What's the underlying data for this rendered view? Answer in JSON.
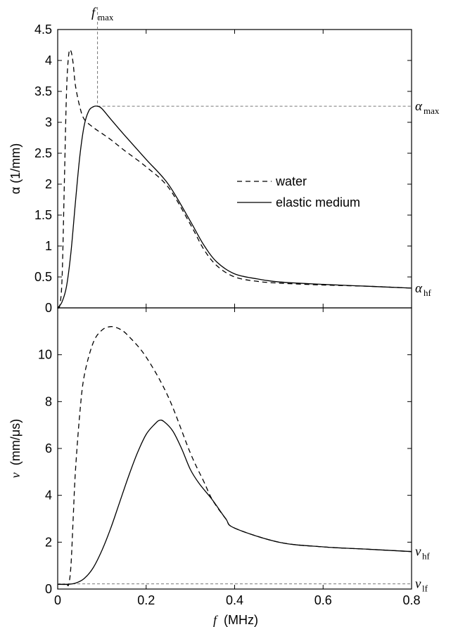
{
  "chart_data": [
    {
      "type": "line",
      "ylabel": "α (1/mm)",
      "xlim": [
        0,
        0.8
      ],
      "ylim": [
        0,
        4.5
      ],
      "yticks": [
        "0",
        "0.5",
        "1",
        "1.5",
        "2",
        "2.5",
        "3",
        "3.5",
        "4",
        "4.5"
      ],
      "ytick_values": [
        0,
        0.5,
        1,
        1.5,
        2,
        2.5,
        3,
        3.5,
        4,
        4.5
      ],
      "grid": false,
      "legend_position": "center-right",
      "annotations": {
        "fmax": {
          "label_main": "f",
          "label_sub": "max",
          "x": 0.09
        },
        "alpha_max": {
          "label_main": "α",
          "label_sub": "max",
          "y": 3.26
        },
        "alpha_hf": {
          "label_main": "α",
          "label_sub": "hf",
          "y": 0.32
        }
      },
      "series": [
        {
          "name": "water",
          "style": "dashed",
          "x": [
            0,
            0.005,
            0.01,
            0.015,
            0.02,
            0.025,
            0.03,
            0.035,
            0.04,
            0.05,
            0.06,
            0.08,
            0.1,
            0.12,
            0.15,
            0.2,
            0.25,
            0.3,
            0.33,
            0.36,
            0.4,
            0.45,
            0.5,
            0.6,
            0.7,
            0.8
          ],
          "y": [
            0,
            0.05,
            0.5,
            2.0,
            3.5,
            4.1,
            4.15,
            3.95,
            3.6,
            3.25,
            3.05,
            2.92,
            2.82,
            2.72,
            2.55,
            2.28,
            1.95,
            1.35,
            0.95,
            0.68,
            0.5,
            0.43,
            0.4,
            0.37,
            0.35,
            0.32
          ]
        },
        {
          "name": "elastic medium",
          "style": "solid",
          "x": [
            0,
            0.01,
            0.02,
            0.03,
            0.04,
            0.05,
            0.06,
            0.07,
            0.08,
            0.09,
            0.1,
            0.12,
            0.15,
            0.2,
            0.25,
            0.3,
            0.33,
            0.36,
            0.4,
            0.45,
            0.5,
            0.6,
            0.7,
            0.8
          ],
          "y": [
            0,
            0.1,
            0.35,
            0.9,
            1.7,
            2.45,
            2.95,
            3.18,
            3.25,
            3.26,
            3.22,
            3.05,
            2.8,
            2.4,
            2.0,
            1.4,
            1.02,
            0.74,
            0.55,
            0.47,
            0.42,
            0.38,
            0.35,
            0.32
          ]
        }
      ]
    },
    {
      "type": "line",
      "xlabel_main": "f",
      "xlabel_unit": "(MHz)",
      "ylabel_main": "v",
      "ylabel_unit": "(mm/μs)",
      "xlim": [
        0,
        0.8
      ],
      "ylim": [
        0,
        12
      ],
      "xticks": [
        "0",
        "0.2",
        "0.4",
        "0.6",
        "0.8"
      ],
      "xtick_values": [
        0,
        0.2,
        0.4,
        0.6,
        0.8
      ],
      "yticks": [
        "0",
        "2",
        "4",
        "6",
        "8",
        "10"
      ],
      "ytick_values": [
        0,
        2,
        4,
        6,
        8,
        10
      ],
      "grid": false,
      "annotations": {
        "v_hf": {
          "label_main": "v",
          "label_sub": "hf",
          "y": 1.6
        },
        "v_lf": {
          "label_main": "v",
          "label_sub": "lf",
          "y": 0.22
        }
      },
      "series": [
        {
          "name": "water",
          "style": "dashed",
          "x": [
            0,
            0.01,
            0.02,
            0.025,
            0.03,
            0.035,
            0.04,
            0.05,
            0.06,
            0.08,
            0.1,
            0.12,
            0.14,
            0.16,
            0.2,
            0.25,
            0.3,
            0.33,
            0.35,
            0.38,
            0.4,
            0.5,
            0.6,
            0.7,
            0.8
          ],
          "y": [
            0.2,
            0.2,
            0.2,
            0.2,
            1.0,
            3.0,
            5.0,
            7.5,
            9.1,
            10.5,
            11.05,
            11.2,
            11.1,
            10.8,
            9.9,
            8.2,
            5.8,
            4.6,
            3.8,
            3.0,
            2.6,
            2.0,
            1.8,
            1.7,
            1.6
          ]
        },
        {
          "name": "elastic medium",
          "style": "solid",
          "x": [
            0,
            0.02,
            0.04,
            0.06,
            0.08,
            0.1,
            0.12,
            0.14,
            0.16,
            0.18,
            0.2,
            0.22,
            0.23,
            0.24,
            0.26,
            0.28,
            0.3,
            0.32,
            0.35,
            0.38,
            0.4,
            0.5,
            0.6,
            0.7,
            0.8
          ],
          "y": [
            0.2,
            0.2,
            0.25,
            0.45,
            0.9,
            1.65,
            2.6,
            3.7,
            4.8,
            5.8,
            6.6,
            7.05,
            7.2,
            7.15,
            6.75,
            6.0,
            5.1,
            4.5,
            3.8,
            3.0,
            2.6,
            2.0,
            1.8,
            1.7,
            1.6
          ]
        }
      ]
    }
  ]
}
